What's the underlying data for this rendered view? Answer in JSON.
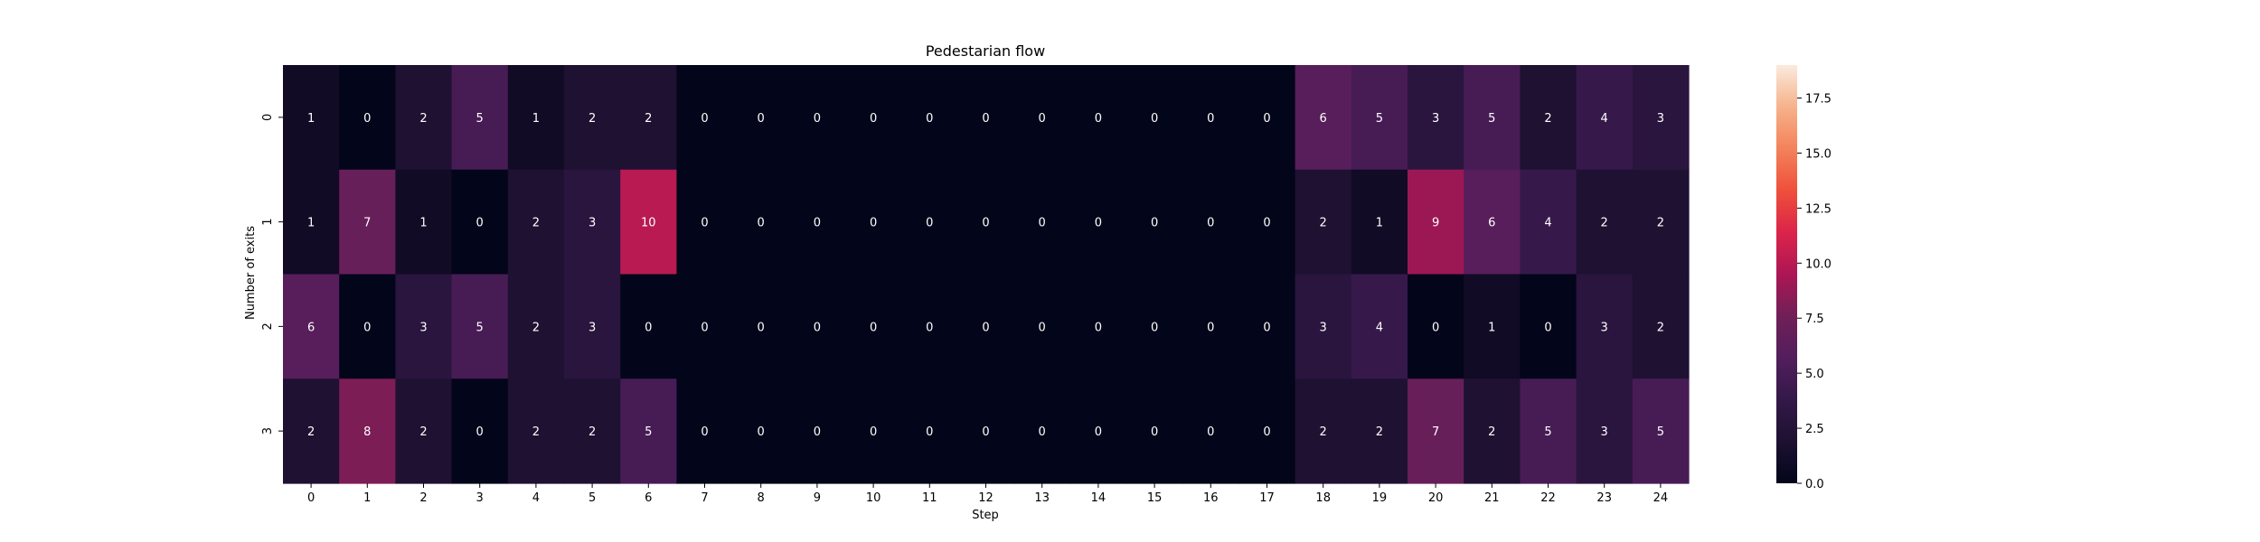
{
  "chart_data": {
    "type": "heatmap",
    "title": "Pedestarian flow",
    "xlabel": "Step",
    "ylabel": "Number of exits",
    "x": [
      "0",
      "1",
      "2",
      "3",
      "4",
      "5",
      "6",
      "7",
      "8",
      "9",
      "10",
      "11",
      "12",
      "13",
      "14",
      "15",
      "16",
      "17",
      "18",
      "19",
      "20",
      "21",
      "22",
      "23",
      "24"
    ],
    "y": [
      "0",
      "1",
      "2",
      "3"
    ],
    "values": [
      [
        1,
        0,
        2,
        5,
        1,
        2,
        2,
        0,
        0,
        0,
        0,
        0,
        0,
        0,
        0,
        0,
        0,
        0,
        6,
        5,
        3,
        5,
        2,
        4,
        3
      ],
      [
        1,
        7,
        1,
        0,
        2,
        3,
        10,
        0,
        0,
        0,
        0,
        0,
        0,
        0,
        0,
        0,
        0,
        0,
        2,
        1,
        9,
        6,
        4,
        2,
        2
      ],
      [
        6,
        0,
        3,
        5,
        2,
        3,
        0,
        0,
        0,
        0,
        0,
        0,
        0,
        0,
        0,
        0,
        0,
        0,
        3,
        4,
        0,
        1,
        0,
        3,
        2
      ],
      [
        2,
        8,
        2,
        0,
        2,
        2,
        5,
        0,
        0,
        0,
        0,
        0,
        0,
        0,
        0,
        0,
        0,
        0,
        2,
        2,
        7,
        2,
        5,
        3,
        5
      ]
    ],
    "colorbar": {
      "range": [
        0,
        19
      ],
      "ticks": [
        "0.0",
        "2.5",
        "5.0",
        "7.5",
        "10.0",
        "12.5",
        "15.0",
        "17.5"
      ]
    },
    "colormap": "rocket"
  }
}
